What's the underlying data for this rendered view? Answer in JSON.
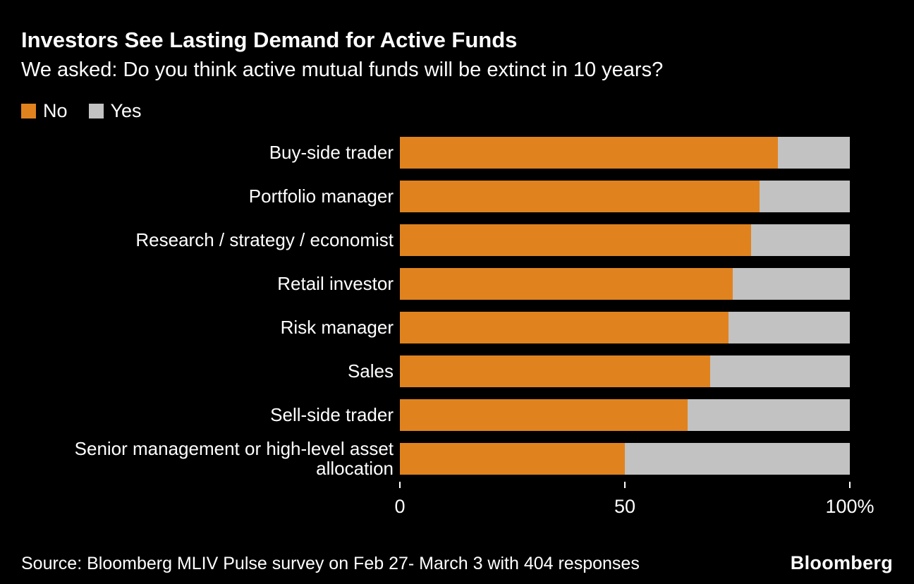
{
  "header": {
    "title": "Investors See Lasting Demand for Active Funds",
    "subtitle": "We asked: Do you think active mutual funds will be extinct in 10 years?"
  },
  "legend": [
    {
      "label": "No",
      "color": "#E0831F"
    },
    {
      "label": "Yes",
      "color": "#C2C2C2"
    }
  ],
  "chart_data": {
    "type": "bar",
    "orientation": "horizontal",
    "stacked": true,
    "title": "Investors See Lasting Demand for Active Funds",
    "subtitle": "We asked: Do you think active mutual funds will be extinct in 10 years?",
    "categories": [
      "Buy-side trader",
      "Portfolio manager",
      "Research / strategy / economist",
      "Retail investor",
      "Risk manager",
      "Sales",
      "Sell-side trader",
      "Senior management or high-level asset allocation"
    ],
    "series": [
      {
        "name": "No",
        "color": "#E0831F",
        "values": [
          84,
          80,
          78,
          74,
          73,
          69,
          64,
          50
        ]
      },
      {
        "name": "Yes",
        "color": "#C2C2C2",
        "values": [
          16,
          20,
          22,
          26,
          27,
          31,
          36,
          50
        ]
      }
    ],
    "xlabel": "",
    "ylabel": "",
    "xlim": [
      0,
      100
    ],
    "xticks": [
      0,
      50,
      100
    ],
    "xtick_labels": [
      "0",
      "50",
      "100%"
    ],
    "grid": false,
    "legend_position": "top-left",
    "background": "#000000",
    "text_color": "#ffffff"
  },
  "footer": {
    "source": "Source: Bloomberg MLIV Pulse survey on Feb 27- March 3 with 404 responses",
    "brand": "Bloomberg"
  }
}
